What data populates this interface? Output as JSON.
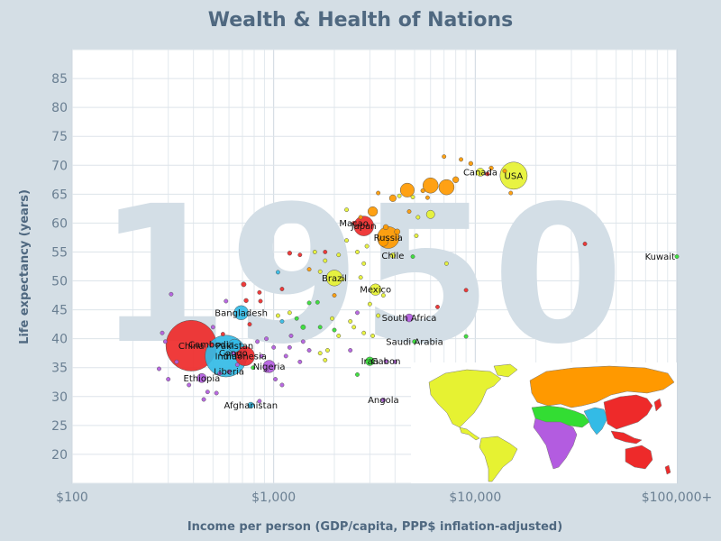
{
  "title": "Wealth & Health of Nations",
  "chart_data": {
    "type": "scatter",
    "title": "Wealth & Health of Nations",
    "xlabel": "Income per person (GDP/capita, PPP$ inflation-adjusted)",
    "ylabel": "Life expectancy (years)",
    "xscale": "log",
    "xlim": [
      100,
      100000
    ],
    "ylim": [
      15,
      90
    ],
    "x_ticks": [
      100,
      1000,
      10000,
      100000
    ],
    "x_tick_labels": [
      "$100",
      "$1,000",
      "$10,000",
      "$100,000+"
    ],
    "y_ticks": [
      20,
      25,
      30,
      35,
      40,
      45,
      50,
      55,
      60,
      65,
      70,
      75,
      80,
      85
    ],
    "y_tick_labels": [
      "20",
      "25",
      "30",
      "35",
      "40",
      "45",
      "50",
      "55",
      "60",
      "65",
      "70",
      "75",
      "80",
      "85"
    ],
    "grid": true,
    "year": "1950",
    "region_colors": {
      "europe_central_asia": "#ff9900",
      "americas": "#e6f232",
      "east_asia_pacific": "#ee2a2a",
      "sub_saharan_africa": "#b35ce0",
      "south_asia": "#33bbe6",
      "middle_east_north_africa": "#33dd33"
    },
    "labeled_points": [
      {
        "name": "USA",
        "x": 15500,
        "y": 68.2,
        "pop": 158,
        "color": "#e6f232"
      },
      {
        "name": "Canada",
        "x": 10600,
        "y": 68.8,
        "pop": 14,
        "color": "#e6f232"
      },
      {
        "name": "Kuwait",
        "x": 100000,
        "y": 54.2,
        "pop": 0.2,
        "color": "#33dd33"
      },
      {
        "name": "Macao",
        "x": 2500,
        "y": 60.0,
        "pop": 0.2,
        "color": "#ee2a2a"
      },
      {
        "name": "Japan",
        "x": 2800,
        "y": 59.5,
        "pop": 84,
        "color": "#ee2a2a"
      },
      {
        "name": "Russia",
        "x": 3700,
        "y": 57.5,
        "pop": 102,
        "color": "#ff9900"
      },
      {
        "name": "Chile",
        "x": 3900,
        "y": 54.4,
        "pop": 6,
        "color": "#e6f232"
      },
      {
        "name": "Brazil",
        "x": 2000,
        "y": 50.5,
        "pop": 54,
        "color": "#e6f232"
      },
      {
        "name": "Mexico",
        "x": 3200,
        "y": 48.5,
        "pop": 28,
        "color": "#e6f232"
      },
      {
        "name": "Bangladesh",
        "x": 690,
        "y": 44.5,
        "pop": 44,
        "color": "#33bbe6"
      },
      {
        "name": "South Africa",
        "x": 4700,
        "y": 43.6,
        "pop": 14,
        "color": "#b35ce0"
      },
      {
        "name": "Cambodia",
        "x": 490,
        "y": 39.0,
        "pop": 4.3,
        "color": "#ee2a2a"
      },
      {
        "name": "China",
        "x": 390,
        "y": 38.8,
        "pop": 550,
        "color": "#ee2a2a"
      },
      {
        "name": "Pakistan",
        "x": 640,
        "y": 38.8,
        "pop": 37,
        "color": "#33bbe6"
      },
      {
        "name": "Congo",
        "x": 630,
        "y": 37.5,
        "pop": 1,
        "color": "#b35ce0"
      },
      {
        "name": "India",
        "x": 580,
        "y": 37.0,
        "pop": 372,
        "color": "#33bbe6"
      },
      {
        "name": "Indonesia",
        "x": 720,
        "y": 37.0,
        "pop": 80,
        "color": "#ee2a2a"
      },
      {
        "name": "Saudi Arabia",
        "x": 5000,
        "y": 39.5,
        "pop": 4,
        "color": "#33dd33"
      },
      {
        "name": "Iran",
        "x": 3000,
        "y": 36.1,
        "pop": 16,
        "color": "#33dd33"
      },
      {
        "name": "Gabon",
        "x": 3600,
        "y": 36.1,
        "pop": 0.5,
        "color": "#b35ce0"
      },
      {
        "name": "Nigeria",
        "x": 950,
        "y": 35.2,
        "pop": 33,
        "color": "#b35ce0"
      },
      {
        "name": "Liberia",
        "x": 600,
        "y": 34.3,
        "pop": 0.8,
        "color": "#b35ce0"
      },
      {
        "name": "Ethiopia",
        "x": 440,
        "y": 33.2,
        "pop": 18,
        "color": "#b35ce0"
      },
      {
        "name": "Angola",
        "x": 3500,
        "y": 29.4,
        "pop": 4,
        "color": "#b35ce0"
      },
      {
        "name": "Afghanistan",
        "x": 770,
        "y": 28.5,
        "pop": 8,
        "color": "#33bbe6"
      }
    ],
    "other_points": [
      {
        "x": 7000,
        "y": 71.5,
        "pop": 3,
        "color": "#ff9900"
      },
      {
        "x": 8500,
        "y": 71.0,
        "pop": 3,
        "color": "#ff9900"
      },
      {
        "x": 9500,
        "y": 70.3,
        "pop": 4,
        "color": "#ff9900"
      },
      {
        "x": 12000,
        "y": 69.5,
        "pop": 4,
        "color": "#ff9900"
      },
      {
        "x": 14000,
        "y": 69.0,
        "pop": 1,
        "color": "#ff9900"
      },
      {
        "x": 11500,
        "y": 68.5,
        "pop": 2,
        "color": "#ee2a2a"
      },
      {
        "x": 8000,
        "y": 67.5,
        "pop": 8,
        "color": "#ff9900"
      },
      {
        "x": 6000,
        "y": 66.5,
        "pop": 50,
        "color": "#ff9900"
      },
      {
        "x": 7200,
        "y": 66.2,
        "pop": 50,
        "color": "#ff9900"
      },
      {
        "x": 5500,
        "y": 65.6,
        "pop": 4,
        "color": "#ff9900"
      },
      {
        "x": 4600,
        "y": 65.7,
        "pop": 42,
        "color": "#ff9900"
      },
      {
        "x": 3900,
        "y": 64.3,
        "pop": 10,
        "color": "#ff9900"
      },
      {
        "x": 3300,
        "y": 65.2,
        "pop": 3,
        "color": "#ff9900"
      },
      {
        "x": 4200,
        "y": 64.7,
        "pop": 1,
        "color": "#e6f232"
      },
      {
        "x": 5800,
        "y": 64.4,
        "pop": 2,
        "color": "#ff9900"
      },
      {
        "x": 4900,
        "y": 64.5,
        "pop": 1,
        "color": "#e6f232"
      },
      {
        "x": 3100,
        "y": 62.0,
        "pop": 20,
        "color": "#ff9900"
      },
      {
        "x": 4700,
        "y": 62.0,
        "pop": 3,
        "color": "#ff9900"
      },
      {
        "x": 5200,
        "y": 61.0,
        "pop": 2,
        "color": "#e6f232"
      },
      {
        "x": 6000,
        "y": 61.5,
        "pop": 15,
        "color": "#e6f232"
      },
      {
        "x": 2300,
        "y": 62.3,
        "pop": 1,
        "color": "#e6f232"
      },
      {
        "x": 2700,
        "y": 61.0,
        "pop": 2,
        "color": "#ff9900"
      },
      {
        "x": 3600,
        "y": 59.3,
        "pop": 6,
        "color": "#ff9900"
      },
      {
        "x": 4100,
        "y": 58.5,
        "pop": 7,
        "color": "#ff9900"
      },
      {
        "x": 3500,
        "y": 56.8,
        "pop": 20,
        "color": "#ff9900"
      },
      {
        "x": 2900,
        "y": 56.0,
        "pop": 1,
        "color": "#e6f232"
      },
      {
        "x": 5100,
        "y": 57.8,
        "pop": 1,
        "color": "#e6f232"
      },
      {
        "x": 2300,
        "y": 57.0,
        "pop": 2,
        "color": "#e6f232"
      },
      {
        "x": 2600,
        "y": 55.0,
        "pop": 1,
        "color": "#e6f232"
      },
      {
        "x": 1600,
        "y": 55.0,
        "pop": 2,
        "color": "#e6f232"
      },
      {
        "x": 1800,
        "y": 53.5,
        "pop": 1,
        "color": "#e6f232"
      },
      {
        "x": 1500,
        "y": 52.0,
        "pop": 3,
        "color": "#ff9900"
      },
      {
        "x": 2100,
        "y": 54.5,
        "pop": 1,
        "color": "#e6f232"
      },
      {
        "x": 2800,
        "y": 53.0,
        "pop": 1,
        "color": "#e6f232"
      },
      {
        "x": 1700,
        "y": 51.6,
        "pop": 1,
        "color": "#e6f232"
      },
      {
        "x": 2200,
        "y": 50.3,
        "pop": 1,
        "color": "#e6f232"
      },
      {
        "x": 1200,
        "y": 54.8,
        "pop": 4,
        "color": "#ee2a2a"
      },
      {
        "x": 1350,
        "y": 54.5,
        "pop": 1,
        "color": "#ee2a2a"
      },
      {
        "x": 1800,
        "y": 55.0,
        "pop": 2,
        "color": "#ee2a2a"
      },
      {
        "x": 1050,
        "y": 51.5,
        "pop": 1,
        "color": "#33bbe6"
      },
      {
        "x": 7200,
        "y": 53.0,
        "pop": 1,
        "color": "#e6f232"
      },
      {
        "x": 4900,
        "y": 54.2,
        "pop": 1,
        "color": "#33dd33"
      },
      {
        "x": 35000,
        "y": 56.4,
        "pop": 0.2,
        "color": "#ee2a2a"
      },
      {
        "x": 15000,
        "y": 65.2,
        "pop": 0.2,
        "color": "#ff9900"
      },
      {
        "x": 9000,
        "y": 48.4,
        "pop": 0.2,
        "color": "#ee2a2a"
      },
      {
        "x": 6500,
        "y": 45.5,
        "pop": 0.3,
        "color": "#ee2a2a"
      },
      {
        "x": 9000,
        "y": 40.4,
        "pop": 0.3,
        "color": "#33dd33"
      },
      {
        "x": 1100,
        "y": 48.6,
        "pop": 1,
        "color": "#ee2a2a"
      },
      {
        "x": 1500,
        "y": 46.2,
        "pop": 2,
        "color": "#33dd33"
      },
      {
        "x": 1650,
        "y": 46.3,
        "pop": 1,
        "color": "#33dd33"
      },
      {
        "x": 2000,
        "y": 47.5,
        "pop": 3,
        "color": "#ff9900"
      },
      {
        "x": 710,
        "y": 49.4,
        "pop": 5,
        "color": "#ee2a2a"
      },
      {
        "x": 850,
        "y": 48.0,
        "pop": 3,
        "color": "#ee2a2a"
      },
      {
        "x": 730,
        "y": 46.6,
        "pop": 4,
        "color": "#ee2a2a"
      },
      {
        "x": 860,
        "y": 46.5,
        "pop": 1,
        "color": "#ee2a2a"
      },
      {
        "x": 580,
        "y": 46.5,
        "pop": 0.3,
        "color": "#b35ce0"
      },
      {
        "x": 310,
        "y": 47.7,
        "pop": 0.5,
        "color": "#b35ce0"
      },
      {
        "x": 1200,
        "y": 44.5,
        "pop": 0.5,
        "color": "#e6f232"
      },
      {
        "x": 1400,
        "y": 42.0,
        "pop": 5,
        "color": "#33dd33"
      },
      {
        "x": 1300,
        "y": 43.5,
        "pop": 1,
        "color": "#33dd33"
      },
      {
        "x": 1700,
        "y": 42.0,
        "pop": 1,
        "color": "#33dd33"
      },
      {
        "x": 2000,
        "y": 41.5,
        "pop": 2,
        "color": "#33dd33"
      },
      {
        "x": 1950,
        "y": 43.5,
        "pop": 1,
        "color": "#e6f232"
      },
      {
        "x": 2400,
        "y": 43.0,
        "pop": 1,
        "color": "#e6f232"
      },
      {
        "x": 2600,
        "y": 44.5,
        "pop": 1,
        "color": "#b35ce0"
      },
      {
        "x": 3300,
        "y": 44.0,
        "pop": 1,
        "color": "#e6f232"
      },
      {
        "x": 2500,
        "y": 42.0,
        "pop": 1,
        "color": "#e6f232"
      },
      {
        "x": 2800,
        "y": 41.0,
        "pop": 1,
        "color": "#e6f232"
      },
      {
        "x": 2100,
        "y": 40.5,
        "pop": 1,
        "color": "#e6f232"
      },
      {
        "x": 3100,
        "y": 40.5,
        "pop": 1,
        "color": "#e6f232"
      },
      {
        "x": 1400,
        "y": 39.5,
        "pop": 2,
        "color": "#b35ce0"
      },
      {
        "x": 1200,
        "y": 38.5,
        "pop": 1,
        "color": "#b35ce0"
      },
      {
        "x": 1500,
        "y": 38.0,
        "pop": 1,
        "color": "#b35ce0"
      },
      {
        "x": 1150,
        "y": 37.0,
        "pop": 1,
        "color": "#b35ce0"
      },
      {
        "x": 1700,
        "y": 37.5,
        "pop": 1,
        "color": "#e6f232"
      },
      {
        "x": 1800,
        "y": 36.3,
        "pop": 1,
        "color": "#e6f232"
      },
      {
        "x": 1350,
        "y": 36.0,
        "pop": 2,
        "color": "#b35ce0"
      },
      {
        "x": 920,
        "y": 40.0,
        "pop": 2,
        "color": "#b35ce0"
      },
      {
        "x": 830,
        "y": 39.5,
        "pop": 2,
        "color": "#b35ce0"
      },
      {
        "x": 1000,
        "y": 38.5,
        "pop": 1,
        "color": "#b35ce0"
      },
      {
        "x": 870,
        "y": 37.0,
        "pop": 1,
        "color": "#b35ce0"
      },
      {
        "x": 1020,
        "y": 33.0,
        "pop": 2,
        "color": "#b35ce0"
      },
      {
        "x": 1100,
        "y": 32.0,
        "pop": 1,
        "color": "#b35ce0"
      },
      {
        "x": 920,
        "y": 34.5,
        "pop": 2,
        "color": "#b35ce0"
      },
      {
        "x": 760,
        "y": 42.5,
        "pop": 1,
        "color": "#ee2a2a"
      },
      {
        "x": 560,
        "y": 40.8,
        "pop": 1,
        "color": "#ee2a2a"
      },
      {
        "x": 500,
        "y": 42.0,
        "pop": 0.5,
        "color": "#b35ce0"
      },
      {
        "x": 280,
        "y": 41.0,
        "pop": 0.5,
        "color": "#b35ce0"
      },
      {
        "x": 290,
        "y": 39.5,
        "pop": 0.4,
        "color": "#b35ce0"
      },
      {
        "x": 270,
        "y": 34.8,
        "pop": 2,
        "color": "#b35ce0"
      },
      {
        "x": 330,
        "y": 36.0,
        "pop": 1,
        "color": "#b35ce0"
      },
      {
        "x": 300,
        "y": 33.0,
        "pop": 0.5,
        "color": "#b35ce0"
      },
      {
        "x": 470,
        "y": 30.8,
        "pop": 1,
        "color": "#b35ce0"
      },
      {
        "x": 520,
        "y": 30.6,
        "pop": 2,
        "color": "#b35ce0"
      },
      {
        "x": 450,
        "y": 29.5,
        "pop": 1,
        "color": "#b35ce0"
      },
      {
        "x": 850,
        "y": 29.2,
        "pop": 1,
        "color": "#b35ce0"
      },
      {
        "x": 540,
        "y": 34.0,
        "pop": 1,
        "color": "#b35ce0"
      },
      {
        "x": 380,
        "y": 32.0,
        "pop": 1,
        "color": "#b35ce0"
      },
      {
        "x": 660,
        "y": 35.5,
        "pop": 1,
        "color": "#b35ce0"
      },
      {
        "x": 790,
        "y": 35.0,
        "pop": 1,
        "color": "#33dd33"
      },
      {
        "x": 1220,
        "y": 40.5,
        "pop": 1,
        "color": "#b35ce0"
      },
      {
        "x": 1850,
        "y": 38.0,
        "pop": 1,
        "color": "#e6f232"
      },
      {
        "x": 2600,
        "y": 33.8,
        "pop": 0.3,
        "color": "#33dd33"
      },
      {
        "x": 2400,
        "y": 38.0,
        "pop": 1,
        "color": "#b35ce0"
      },
      {
        "x": 4000,
        "y": 36.0,
        "pop": 1,
        "color": "#b35ce0"
      },
      {
        "x": 1050,
        "y": 44.0,
        "pop": 1,
        "color": "#e6f232"
      },
      {
        "x": 1100,
        "y": 43.0,
        "pop": 0.5,
        "color": "#33bbe6"
      },
      {
        "x": 3000,
        "y": 46.0,
        "pop": 0.5,
        "color": "#e6f232"
      },
      {
        "x": 3500,
        "y": 47.5,
        "pop": 0.5,
        "color": "#e6f232"
      },
      {
        "x": 2700,
        "y": 50.6,
        "pop": 0.5,
        "color": "#e6f232"
      }
    ],
    "inset_map": {
      "title": "",
      "visible": true
    }
  }
}
